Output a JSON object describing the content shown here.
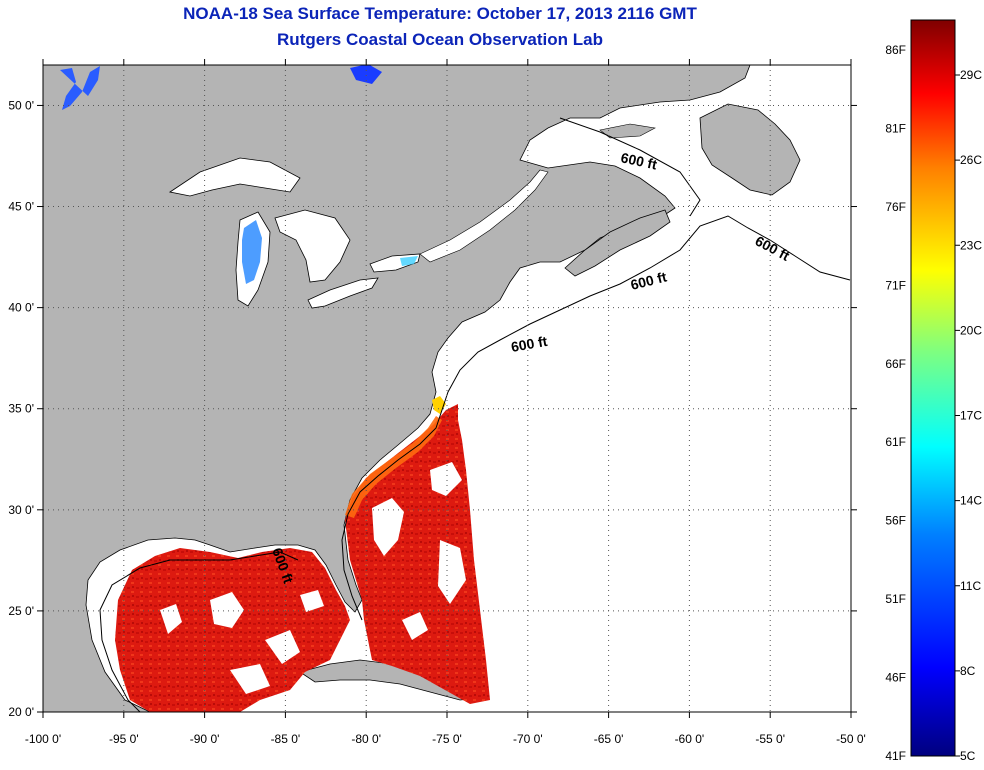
{
  "title": {
    "line1": "NOAA-18 Sea Surface Temperature:  October 17, 2013 2116 GMT",
    "line2": "Rutgers Coastal Ocean Observation Lab"
  },
  "map": {
    "lon_range": [
      -100,
      -50
    ],
    "lat_range": [
      20,
      52
    ],
    "lon_ticks": [
      {
        "value": -100,
        "label": "-100 0'"
      },
      {
        "value": -95,
        "label": "-95 0'"
      },
      {
        "value": -90,
        "label": "-90 0'"
      },
      {
        "value": -85,
        "label": "-85 0'"
      },
      {
        "value": -80,
        "label": "-80 0'"
      },
      {
        "value": -75,
        "label": "-75 0'"
      },
      {
        "value": -70,
        "label": "-70 0'"
      },
      {
        "value": -65,
        "label": "-65 0'"
      },
      {
        "value": -60,
        "label": "-60 0'"
      },
      {
        "value": -55,
        "label": "-55 0'"
      },
      {
        "value": -50,
        "label": "-50 0'"
      }
    ],
    "lat_ticks": [
      {
        "value": 20,
        "label": "20 0'"
      },
      {
        "value": 25,
        "label": "25 0'"
      },
      {
        "value": 30,
        "label": "30 0'"
      },
      {
        "value": 35,
        "label": "35 0'"
      },
      {
        "value": 40,
        "label": "40 0'"
      },
      {
        "value": 45,
        "label": "45 0'"
      },
      {
        "value": 50,
        "label": "50 0'"
      }
    ],
    "contour_labels": [
      "600 ft",
      "600 ft",
      "600 ft",
      "600 ft",
      "600 ft"
    ],
    "colors": {
      "land": "#b4b4b4",
      "water": "#ffffff",
      "grid": "#555555"
    }
  },
  "colorbar": {
    "f_labels": [
      "86F",
      "81F",
      "76F",
      "71F",
      "66F",
      "61F",
      "56F",
      "51F",
      "46F",
      "41F"
    ],
    "c_labels": [
      "29C",
      "26C",
      "23C",
      "20C",
      "17C",
      "14C",
      "11C",
      "8C",
      "5C"
    ],
    "colors": [
      "#00007f",
      "#0000ff",
      "#007fff",
      "#00ffff",
      "#7fff7f",
      "#ffff00",
      "#ff7f00",
      "#ff0000",
      "#7f0000"
    ]
  }
}
